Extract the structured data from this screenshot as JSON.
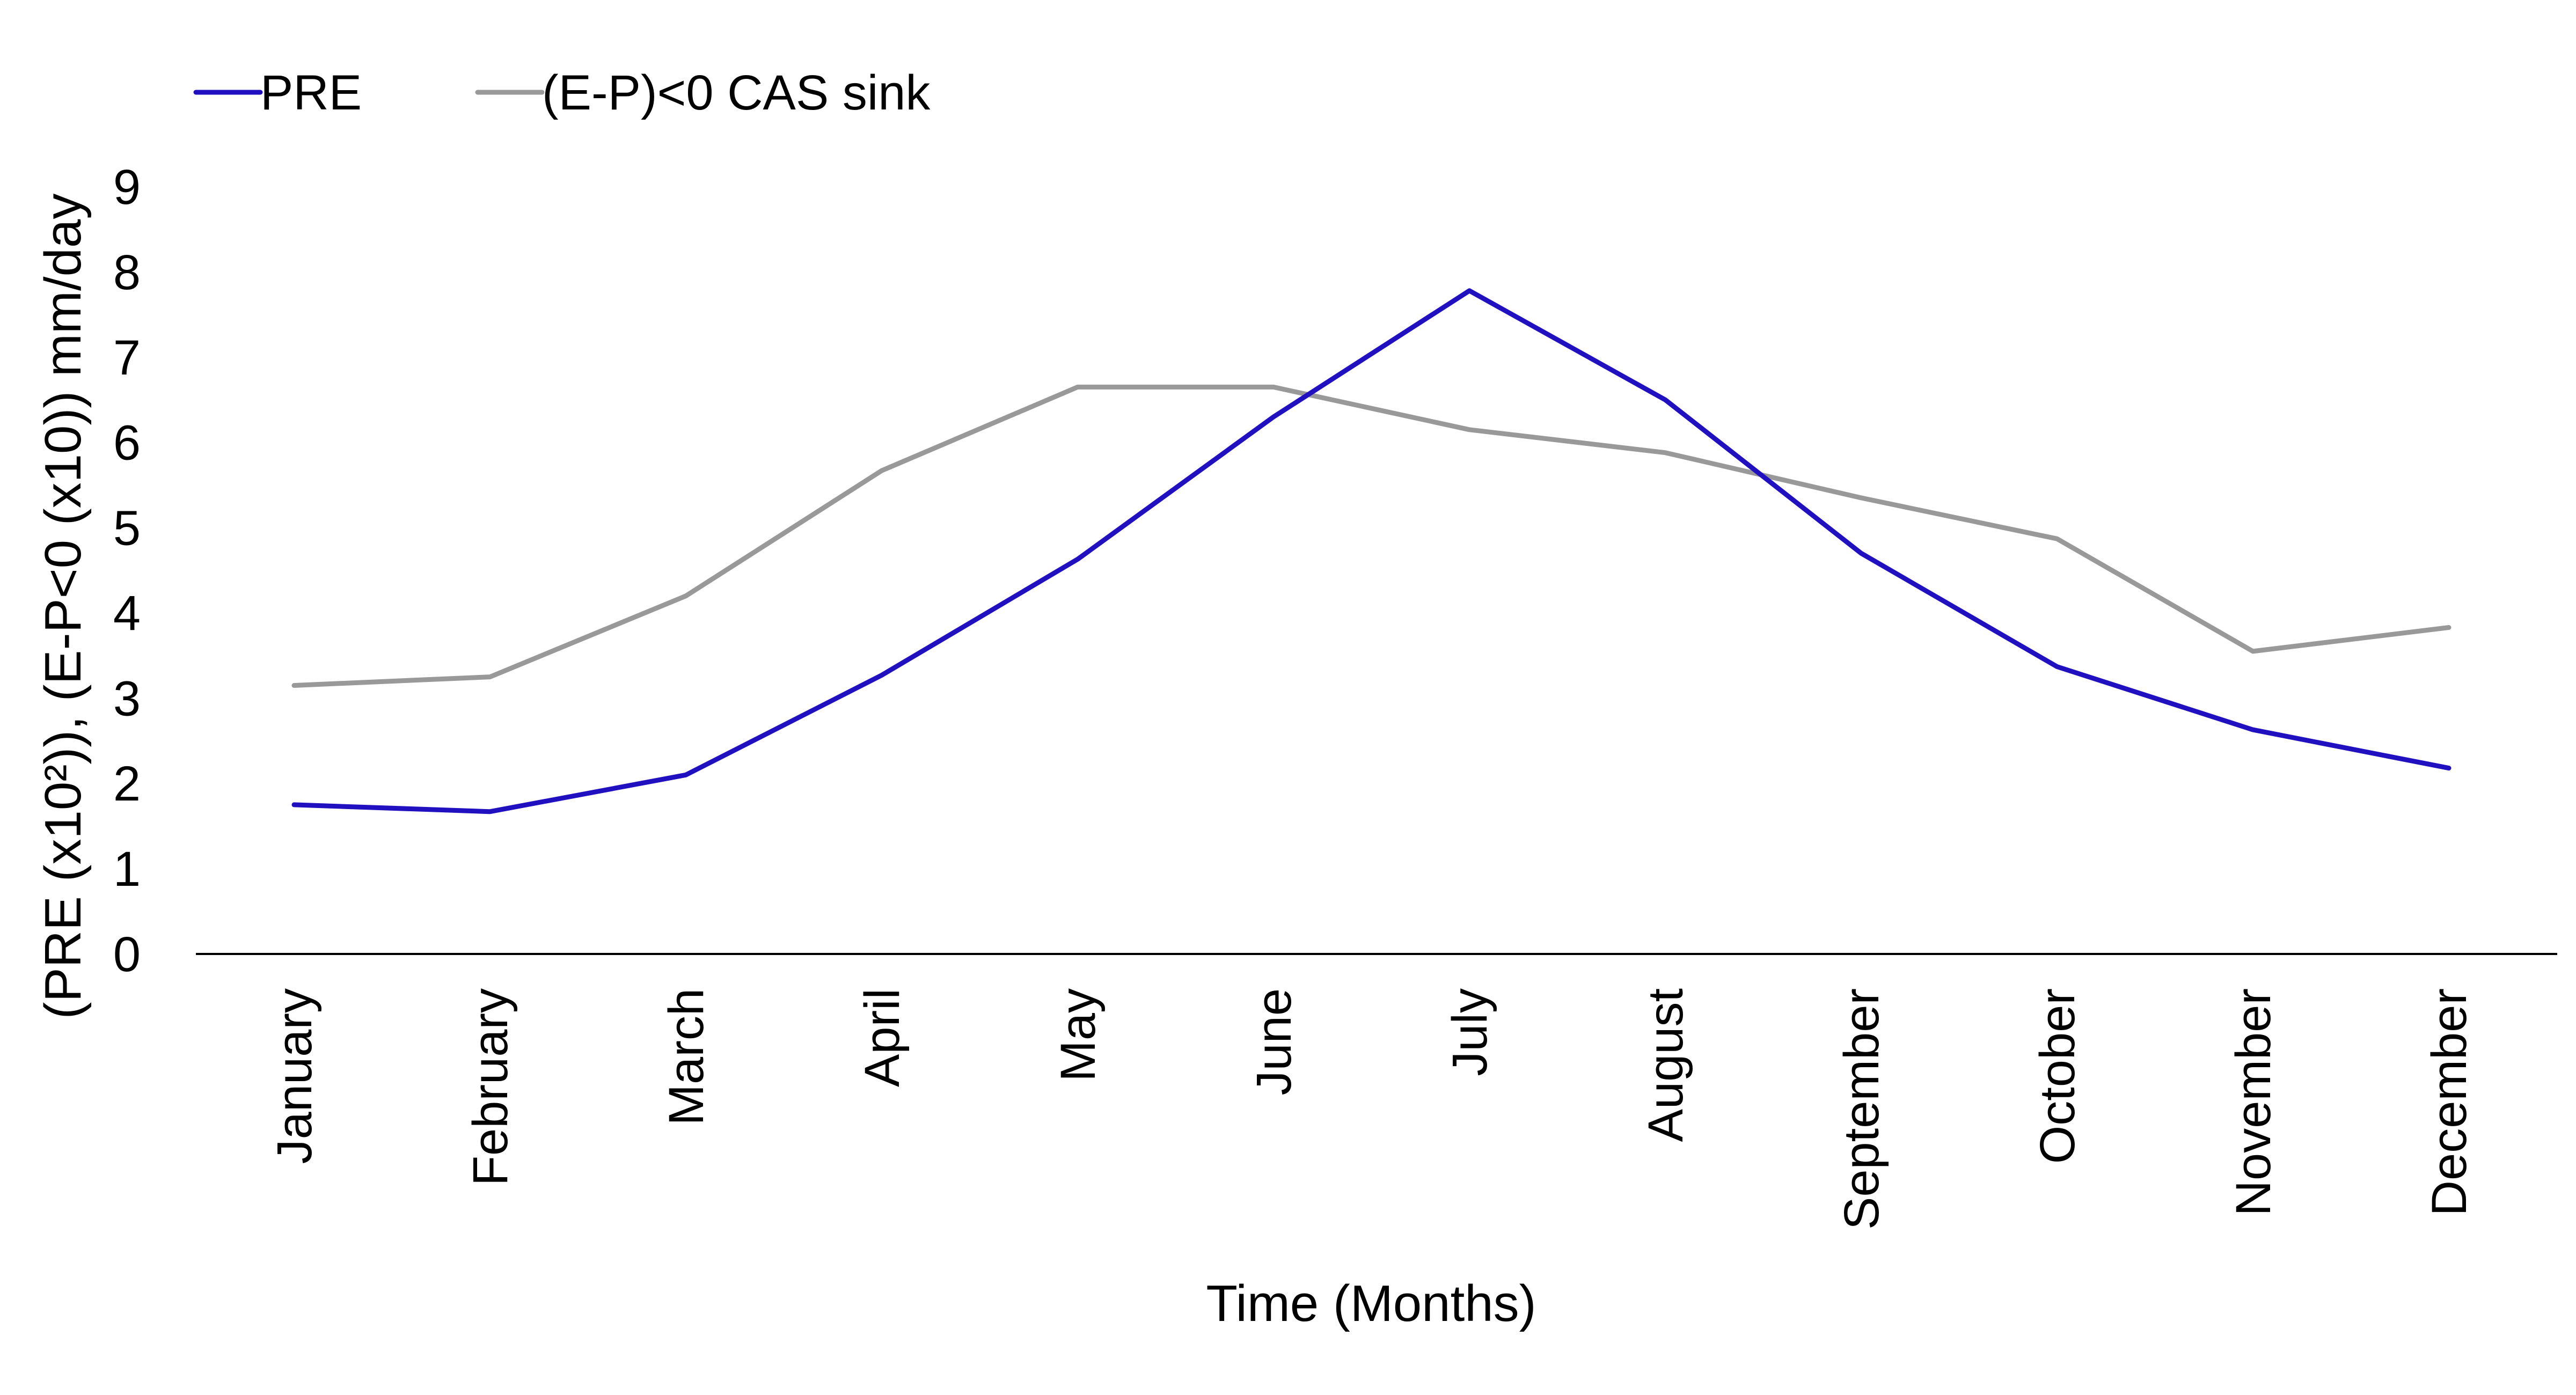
{
  "chart_data": {
    "type": "line",
    "title": "",
    "xlabel": "Time (Months)",
    "ylabel": "(PRE (x10²)), (E-P<0 (x10)) mm/day",
    "ylim": [
      0,
      9
    ],
    "yticks": [
      "0",
      "1",
      "2",
      "3",
      "4",
      "5",
      "6",
      "7",
      "8",
      "9"
    ],
    "grid": false,
    "legend_position": "top-left",
    "categories": [
      "January",
      "February",
      "March",
      "April",
      "May",
      "June",
      "July",
      "August",
      "September",
      "October",
      "November",
      "December"
    ],
    "series": [
      {
        "name": "PRE",
        "color": "#2010C0",
        "values": [
          1.75,
          1.67,
          2.1,
          3.27,
          4.63,
          6.3,
          7.78,
          6.5,
          4.7,
          3.37,
          2.63,
          2.18
        ]
      },
      {
        "name": "(E-P)<0  CAS sink",
        "color": "#999999",
        "values": [
          3.15,
          3.25,
          4.2,
          5.67,
          6.65,
          6.65,
          6.15,
          5.88,
          5.35,
          4.87,
          3.55,
          3.83
        ]
      }
    ]
  }
}
